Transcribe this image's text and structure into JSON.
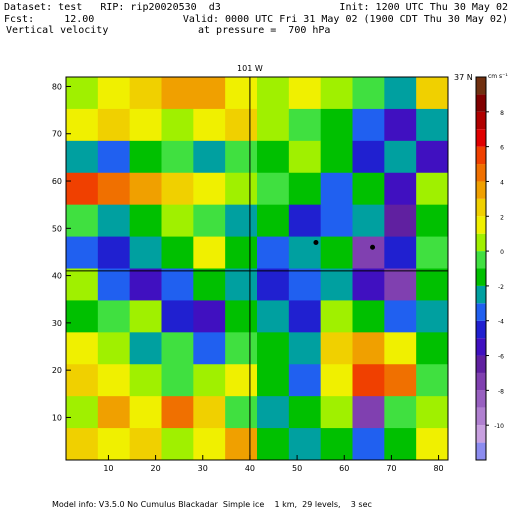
{
  "chart_data": {
    "type": "contour",
    "header": {
      "dataset": "Dataset: test   RIP: rip20020530  d3",
      "init": "Init: 1200 UTC Thu 30 May 02",
      "fcst": "Fcst:     12.00",
      "valid": "Valid: 0000 UTC Fri 31 May 02 (1900 CDT Thu 30 May 02)",
      "field": "Vertical velocity",
      "level": "at pressure =  700 hPa"
    },
    "footer": "Model info: V3.5.0 No Cumulus Blackadar  Simple ice    1 km,  29 levels,    3 sec",
    "xlim": [
      1,
      82
    ],
    "ylim": [
      1,
      82
    ],
    "xticks": [
      10,
      20,
      30,
      40,
      50,
      60,
      70,
      80
    ],
    "yticks": [
      10,
      20,
      30,
      40,
      50,
      60,
      70,
      80
    ],
    "z": [
      [
        0,
        1,
        2,
        3,
        3,
        1,
        0,
        1,
        0,
        -1,
        -3,
        2
      ],
      [
        1,
        2,
        1,
        0,
        1,
        2,
        0,
        -1,
        -2,
        -4,
        -6,
        -3
      ],
      [
        -3,
        -4,
        -2,
        -1,
        -3,
        -1,
        -2,
        0,
        -2,
        -5,
        -3,
        -6
      ],
      [
        5,
        4,
        3,
        2,
        1,
        0,
        -1,
        -2,
        -4,
        -2,
        -6,
        0
      ],
      [
        -1,
        -3,
        -2,
        0,
        -1,
        -3,
        -2,
        -5,
        -4,
        -3,
        -7,
        -2
      ],
      [
        -4,
        -5,
        -3,
        -2,
        1,
        -2,
        -4,
        -3,
        -2,
        -8,
        -5,
        -1
      ],
      [
        0,
        -4,
        -6,
        -4,
        -2,
        -3,
        -5,
        -4,
        -3,
        -6,
        -8,
        -2
      ],
      [
        -2,
        -1,
        0,
        -5,
        -6,
        -2,
        -3,
        -5,
        0,
        -2,
        -4,
        -3
      ],
      [
        1,
        0,
        -3,
        -1,
        -4,
        -1,
        -2,
        -3,
        2,
        3,
        1,
        -2
      ],
      [
        2,
        1,
        0,
        -1,
        0,
        1,
        -2,
        -4,
        1,
        5,
        4,
        -1
      ],
      [
        0,
        3,
        1,
        4,
        2,
        -1,
        -3,
        -2,
        0,
        -8,
        -1,
        0
      ],
      [
        2,
        1,
        2,
        0,
        1,
        3,
        -2,
        -3,
        -2,
        -4,
        -2,
        1
      ]
    ],
    "meridian": {
      "x": 40,
      "label": "101 W"
    },
    "parallel": {
      "y": 41,
      "label": "37 N"
    },
    "points": {
      "x": [
        54,
        66
      ],
      "y": [
        47,
        46
      ]
    },
    "colorbar": {
      "label": "cm s⁻¹",
      "levels": [
        -12,
        -11,
        -10,
        -9,
        -8,
        -7,
        -6,
        -5,
        -4,
        -3,
        -2,
        -1,
        0,
        1,
        2,
        3,
        4,
        5,
        6,
        7,
        8,
        9,
        10
      ],
      "colors": [
        "#8c8cf0",
        "#c8a0e0",
        "#b080d0",
        "#9860c0",
        "#8040b0",
        "#6020a0",
        "#4010c0",
        "#2020d0",
        "#2060f0",
        "#00a0a0",
        "#00c000",
        "#40e040",
        "#a0f000",
        "#f0f000",
        "#f0d000",
        "#f0a000",
        "#f07000",
        "#f04000",
        "#e00000",
        "#b00000",
        "#800000",
        "#703010"
      ],
      "ticks": [
        -10,
        -8,
        -6,
        -4,
        -2,
        0,
        2,
        4,
        6,
        8
      ]
    }
  }
}
